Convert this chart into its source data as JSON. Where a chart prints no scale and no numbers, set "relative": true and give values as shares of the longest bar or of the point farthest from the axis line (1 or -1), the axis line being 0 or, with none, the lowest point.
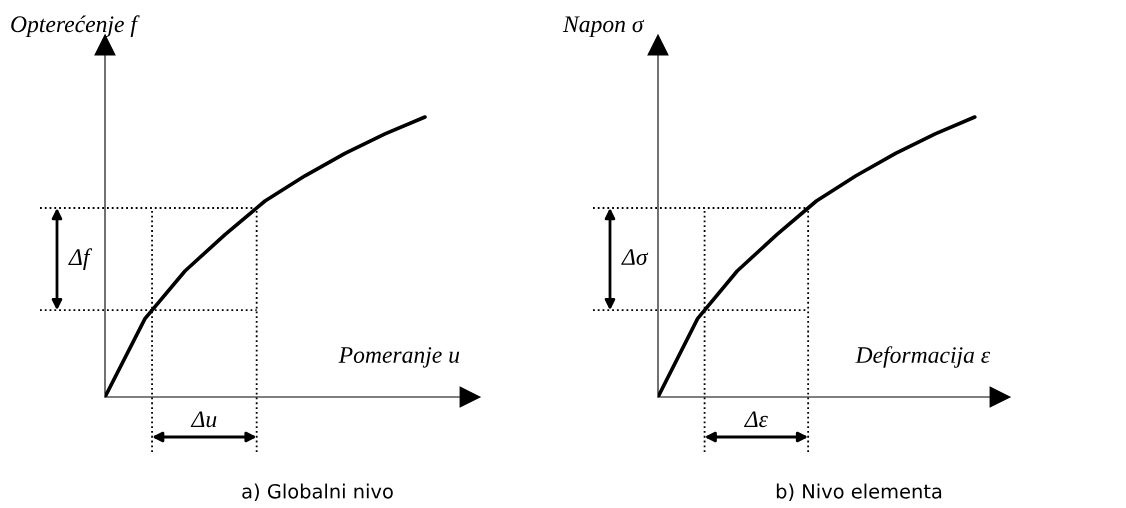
{
  "chart_data": [
    {
      "type": "line",
      "relative": true,
      "title": "a) Globalni nivo",
      "xlabel": "Pomeranje u",
      "ylabel": "Opterećenje f",
      "line_style": "solid",
      "categories": [
        null,
        null,
        null,
        null,
        null,
        null,
        null,
        null,
        null
      ],
      "series": [
        {
          "color": "#000000",
          "values": [
            0,
            0.28,
            0.45,
            0.58,
            0.7,
            0.79,
            0.87,
            0.94,
            1
          ]
        }
      ],
      "annotations": [
        "Δf",
        "Δu"
      ],
      "ref_lines": [
        {
          "axis": "y",
          "value": 0.31,
          "line_style": "dotted"
        },
        {
          "axis": "y",
          "value": 0.675,
          "line_style": "dotted"
        }
      ]
    },
    {
      "type": "line",
      "relative": true,
      "title": "b) Nivo elementa",
      "xlabel": "Deformacija ε",
      "ylabel": "Napon σ",
      "line_style": "solid",
      "categories": [
        null,
        null,
        null,
        null,
        null,
        null,
        null,
        null,
        null
      ],
      "series": [
        {
          "color": "#000000",
          "values": [
            0,
            0.28,
            0.45,
            0.58,
            0.7,
            0.79,
            0.87,
            0.94,
            1
          ]
        }
      ],
      "annotations": [
        "Δσ",
        "Δε"
      ],
      "ref_lines": [
        {
          "axis": "y",
          "value": 0.31,
          "line_style": "dotted"
        },
        {
          "axis": "y",
          "value": 0.675,
          "line_style": "dotted"
        }
      ]
    }
  ]
}
